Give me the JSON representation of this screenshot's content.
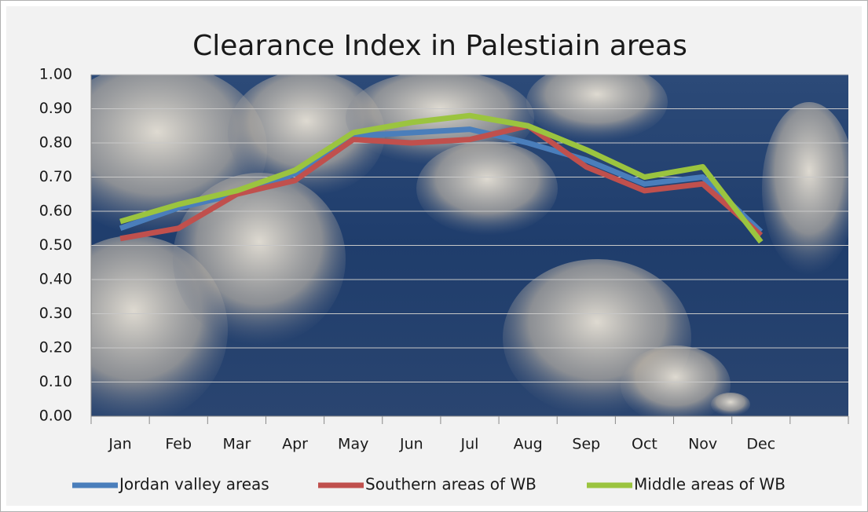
{
  "chart_data": {
    "type": "line",
    "title": "Clearance Index in Palestiain areas",
    "categories": [
      "Jan",
      "Feb",
      "Mar",
      "Apr",
      "May",
      "Jun",
      "Jul",
      "Aug",
      "Sep",
      "Oct",
      "Nov",
      "Dec",
      null
    ],
    "series": [
      {
        "name": "Jordan valley areas",
        "color": "#4a7ebb",
        "values": [
          0.55,
          0.61,
          0.65,
          0.71,
          0.82,
          0.83,
          0.84,
          0.8,
          0.75,
          0.68,
          0.7,
          0.54,
          null
        ]
      },
      {
        "name": "Southern areas of WB",
        "color": "#c0504d",
        "values": [
          0.52,
          0.55,
          0.65,
          0.69,
          0.81,
          0.8,
          0.81,
          0.85,
          0.73,
          0.66,
          0.68,
          0.53,
          null
        ]
      },
      {
        "name": "Middle areas of WB",
        "color": "#9bc43f",
        "values": [
          0.57,
          0.62,
          0.66,
          0.72,
          0.83,
          0.86,
          0.88,
          0.85,
          0.78,
          0.7,
          0.73,
          0.51,
          null
        ]
      }
    ],
    "ylim": [
      0,
      1
    ],
    "yticks": [
      {
        "value": 0,
        "label": "0.00"
      },
      {
        "value": 0.1,
        "label": "0.10"
      },
      {
        "value": 0.2,
        "label": "0.20"
      },
      {
        "value": 0.3,
        "label": "0.30"
      },
      {
        "value": 0.4,
        "label": "0.40"
      },
      {
        "value": 0.5,
        "label": "0.50"
      },
      {
        "value": 0.6,
        "label": "0.60"
      },
      {
        "value": 0.7,
        "label": "0.70"
      },
      {
        "value": 0.8,
        "label": "0.80"
      },
      {
        "value": 0.9,
        "label": "0.90"
      },
      {
        "value": 1,
        "label": "1.00"
      }
    ],
    "grid": true,
    "legend": "bottom"
  }
}
